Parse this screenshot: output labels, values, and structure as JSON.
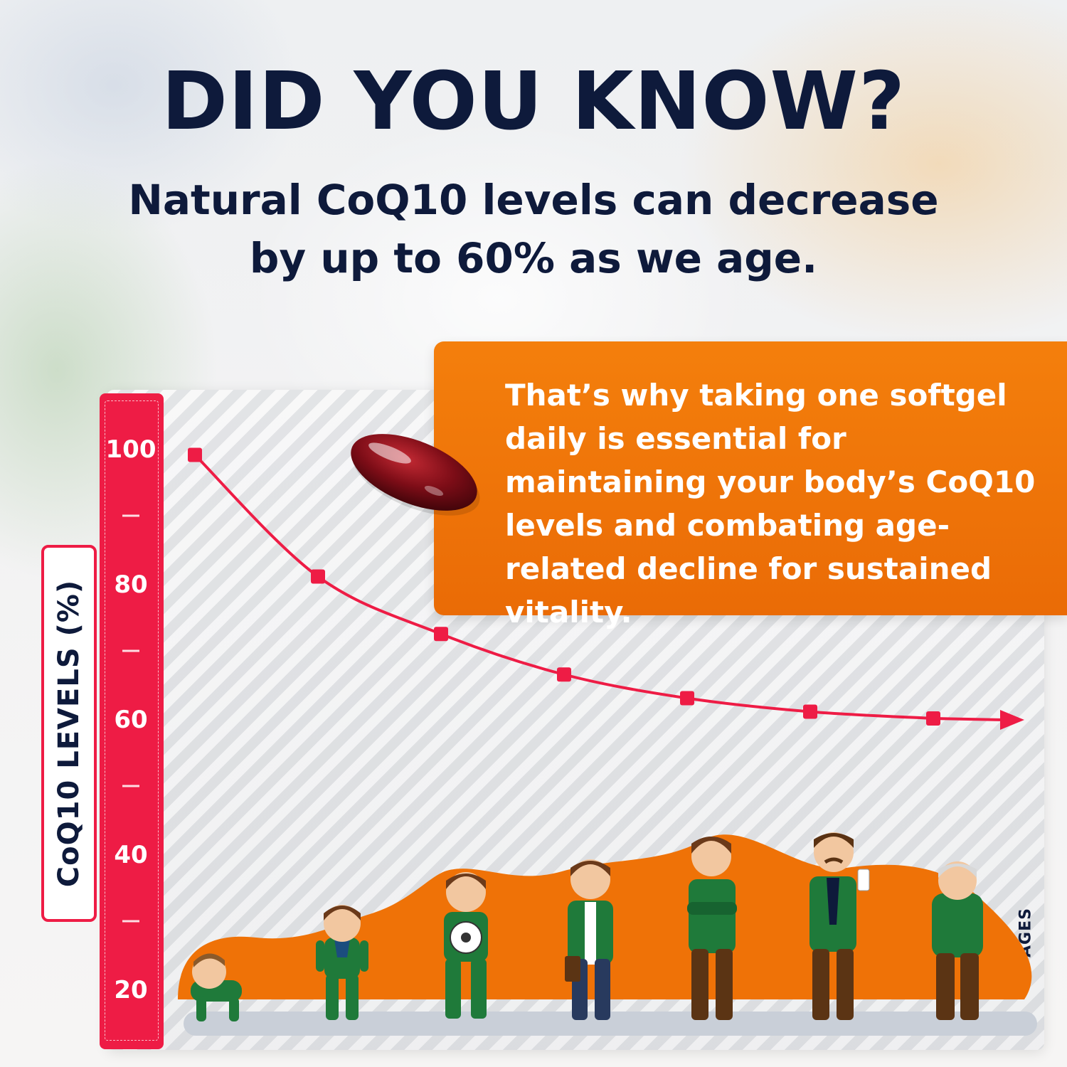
{
  "headline": "DID YOU KNOW?",
  "subheadline": "Natural CoQ10 levels can decrease\nby up to 60% as we age.",
  "callout": "That’s why taking one softgel daily is essential for maintaining your body’s CoQ10 levels and combating age-related decline for sustained vitality.",
  "colors": {
    "navy": "#0e1a3b",
    "red": "#ee1c45",
    "orange": "#f47f0c",
    "shirt_green": "#1f7a3a",
    "pants_brown": "#5b3414"
  },
  "icons": [
    "softgel-capsule",
    "baby-crawling",
    "toddler",
    "child-with-ball",
    "teen",
    "adult",
    "middle-aged-man",
    "elderly-man"
  ],
  "chart_data": {
    "type": "line",
    "ylabel": "CoQ10 LEVELS (%)",
    "xlabel": "AGES",
    "y_ticks": [
      100,
      80,
      60,
      40,
      20
    ],
    "ylim": [
      20,
      100
    ],
    "series": [
      {
        "values": [
          99,
          81,
          72.5,
          66.5,
          63,
          61,
          60
        ]
      }
    ],
    "arrow_end": true,
    "grid": false
  }
}
